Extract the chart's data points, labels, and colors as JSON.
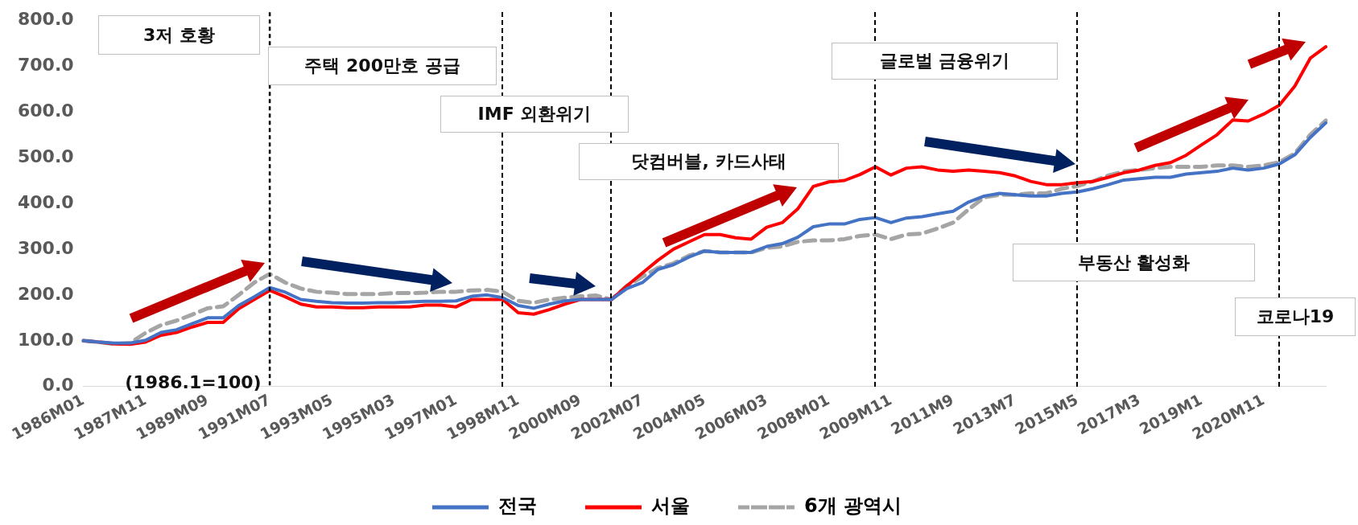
{
  "chart_data": {
    "type": "line",
    "categories": [
      "1986M01",
      null,
      null,
      null,
      "1987M11",
      null,
      null,
      null,
      "1989M09",
      null,
      null,
      null,
      "1991M07",
      null,
      null,
      null,
      "1993M05",
      null,
      null,
      null,
      "1995M03",
      null,
      null,
      null,
      "1997M01",
      null,
      null,
      null,
      "1998M11",
      null,
      null,
      null,
      "2000M09",
      null,
      null,
      null,
      "2002M07",
      null,
      null,
      null,
      "2004M05",
      null,
      null,
      null,
      "2006M03",
      null,
      null,
      null,
      "2008M01",
      null,
      null,
      null,
      "2009M11",
      null,
      null,
      null,
      "2011M9",
      null,
      null,
      null,
      "2013M7",
      null,
      null,
      null,
      "2015M5",
      null,
      null,
      null,
      "2017M3",
      null,
      null,
      null,
      "2019M1",
      null,
      null,
      null,
      "2020M11",
      null,
      null,
      null,
      null
    ],
    "series": [
      {
        "name": "전국",
        "color": "#4472c4",
        "line_style": "solid",
        "values": [
          100,
          97,
          95,
          95,
          101,
          118,
          124,
          137,
          150,
          150,
          177,
          196,
          216,
          206,
          190,
          186,
          183,
          182,
          182,
          183,
          183,
          185,
          186,
          186,
          187,
          197,
          200,
          194,
          177,
          171,
          180,
          187,
          190,
          190,
          190,
          214,
          227,
          256,
          266,
          283,
          296,
          293,
          293,
          293,
          306,
          312,
          326,
          349,
          355,
          355,
          365,
          369,
          358,
          368,
          371,
          377,
          383,
          403,
          416,
          422,
          419,
          416,
          416,
          422,
          425,
          432,
          441,
          451,
          454,
          457,
          457,
          464,
          467,
          470,
          477,
          473,
          477,
          486,
          506,
          544,
          576
        ]
      },
      {
        "name": "서울",
        "color": "#ff0000",
        "line_style": "solid",
        "values": [
          100,
          97,
          93,
          92,
          97,
          112,
          118,
          130,
          140,
          140,
          170,
          190,
          210,
          196,
          180,
          174,
          174,
          172,
          172,
          174,
          174,
          174,
          178,
          178,
          174,
          190,
          190,
          190,
          161,
          158,
          168,
          180,
          190,
          190,
          190,
          220,
          248,
          276,
          300,
          316,
          332,
          332,
          325,
          322,
          348,
          358,
          388,
          437,
          447,
          450,
          463,
          480,
          462,
          477,
          480,
          473,
          470,
          473,
          470,
          467,
          460,
          448,
          441,
          441,
          445,
          448,
          457,
          467,
          473,
          483,
          489,
          505,
          528,
          550,
          582,
          580,
          595,
          614,
          656,
          717,
          742
        ]
      },
      {
        "name": "6개 광역시",
        "color": "#a5a5a5",
        "line_style": "dashed",
        "values": [
          100,
          97,
          93,
          95,
          117,
          134,
          144,
          157,
          171,
          175,
          200,
          227,
          246,
          227,
          214,
          207,
          205,
          202,
          202,
          202,
          204,
          204,
          205,
          207,
          207,
          210,
          211,
          207,
          187,
          183,
          190,
          194,
          197,
          199,
          190,
          220,
          240,
          259,
          269,
          286,
          296,
          293,
          293,
          293,
          303,
          306,
          316,
          319,
          319,
          322,
          329,
          332,
          322,
          332,
          334,
          345,
          358,
          387,
          413,
          419,
          419,
          422,
          422,
          432,
          438,
          448,
          461,
          470,
          473,
          477,
          480,
          480,
          480,
          483,
          483,
          480,
          483,
          490,
          509,
          550,
          581
        ]
      }
    ],
    "ylim": [
      0,
      800
    ],
    "yticks": [
      {
        "value": 0,
        "label": "0.0"
      },
      {
        "value": 100,
        "label": "100.0"
      },
      {
        "value": 200,
        "label": "200.0"
      },
      {
        "value": 300,
        "label": "300.0"
      },
      {
        "value": 400,
        "label": "400.0"
      },
      {
        "value": 500,
        "label": "500.0"
      },
      {
        "value": 600,
        "label": "600.0"
      },
      {
        "value": 700,
        "label": "700.0"
      },
      {
        "value": 800,
        "label": "800.0"
      }
    ],
    "ref_lines": [
      {
        "axis": "x",
        "value": "1991M07",
        "color": "#000000",
        "line_style": "dashed"
      }
    ],
    "annotations": [
      "3저 호황",
      "주택 200만호 공급",
      "IMF 외환위기",
      "닷컴버블, 카드사태",
      "글로벌 금융위기",
      "부동산 활성화",
      "코로나19",
      "(1986.1=100)"
    ],
    "grid": false,
    "marker": "none",
    "legend": "bottom"
  }
}
